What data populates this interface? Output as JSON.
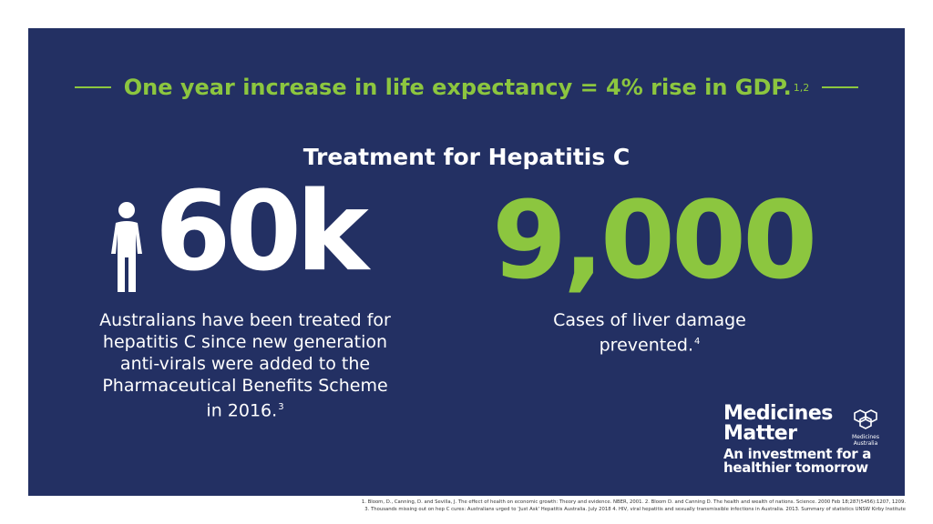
{
  "headline": {
    "text": "One year increase in life expectancy = 4% rise in GDP.",
    "refs": "1,2"
  },
  "subtitle": "Treatment for Hepatitis C",
  "stat_left": {
    "value": "60k",
    "description": "Australians have been treated for hepatitis C since new generation anti-virals were added to the Pharmaceutical Benefits Scheme in 2016.",
    "ref": "3"
  },
  "stat_right": {
    "value": "9,000",
    "description": "Cases of liver damage prevented.",
    "ref": "4"
  },
  "brand": {
    "name_line1": "Medicines",
    "name_line2": "Matter",
    "tagline_line1": "An investment for a",
    "tagline_line2": "healthier tomorrow",
    "logo_line1": "Medicines",
    "logo_line2": "Australia"
  },
  "footnotes": {
    "line1": "1. Bloom, D., Canning, D. and Sevilla, J. The effect of health on economic growth: Theory and evidence. NBER, 2001.  2. Bloom D. and Canning D. The health and wealth of nations. Science. 2000 Feb 18;287(5456):1207, 1209.",
    "line2": "3. Thousands missing out on hep C cures: Australians urged to 'Just Ask' Hepatitis Australia. July 2018  4. HIV, viral hepatitis and sexually transmissible infections in Australia. 2013. Summary of statistics UNSW Kirby Institute"
  },
  "colors": {
    "background": "#233063",
    "accent": "#8cc63f",
    "text": "#ffffff"
  },
  "icons": {
    "person": "person-icon",
    "logo": "hexagon-logo-icon"
  }
}
